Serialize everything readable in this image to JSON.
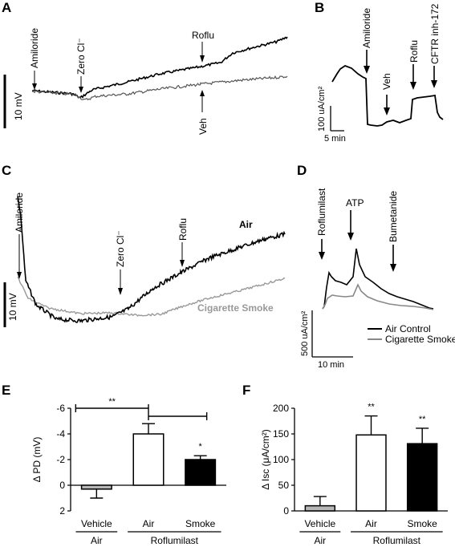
{
  "panels": {
    "A": {
      "label": "A",
      "scale_label": "10 mV",
      "events": [
        "Amiloride",
        "Zero Cl⁻",
        "Roflu",
        "Veh"
      ]
    },
    "B": {
      "label": "B",
      "events": [
        "Amiloride",
        "Veh",
        "Roflu",
        "CFTR inh-172"
      ],
      "scale_y": "100 uA/cm²",
      "scale_x": "5 min"
    },
    "C": {
      "label": "C",
      "events": [
        "Amiloride",
        "Zero Cl⁻",
        "Roflu"
      ],
      "scale_label": "10 mV",
      "trace_labels": [
        "Air",
        "Cigarette Smoke"
      ]
    },
    "D": {
      "label": "D",
      "events": [
        "Roflumilast",
        "ATP",
        "Bumetanide"
      ],
      "scale_y": "500 uA/cm²",
      "scale_x": "10 min",
      "legend": [
        "Air Control",
        "Cigarette Smoke"
      ]
    }
  },
  "chart_data": [
    {
      "panel": "E",
      "type": "bar",
      "ylabel": "Δ PD (mV)",
      "y_inverted": true,
      "ylim": [
        2,
        -6
      ],
      "yticks": [
        "-6",
        "-4",
        "-2",
        "0",
        "2"
      ],
      "categories": [
        "Vehicle",
        "Air",
        "Smoke"
      ],
      "group_labels": [
        "Air",
        "Roflumilast"
      ],
      "values": [
        0.3,
        -4.0,
        -2.0
      ],
      "errors": [
        0.7,
        0.8,
        0.3
      ],
      "colors": [
        "#b7b7b7",
        "#ffffff",
        "#000000"
      ],
      "significance": [
        "",
        "",
        "*"
      ],
      "brackets": [
        "**",
        ""
      ]
    },
    {
      "panel": "F",
      "type": "bar",
      "ylabel": "Δ Isc (μA/cm²)",
      "ylim": [
        0,
        200
      ],
      "yticks": [
        "0",
        "50",
        "100",
        "150",
        "200"
      ],
      "categories": [
        "Vehicle",
        "Air",
        "Smoke"
      ],
      "group_labels": [
        "Air",
        "Roflumilast"
      ],
      "values": [
        10,
        148,
        131
      ],
      "errors": [
        18,
        37,
        30
      ],
      "colors": [
        "#b7b7b7",
        "#ffffff",
        "#000000"
      ],
      "significance": [
        "",
        "**",
        "**"
      ]
    }
  ],
  "panel_labels": {
    "E": "E",
    "F": "F"
  }
}
